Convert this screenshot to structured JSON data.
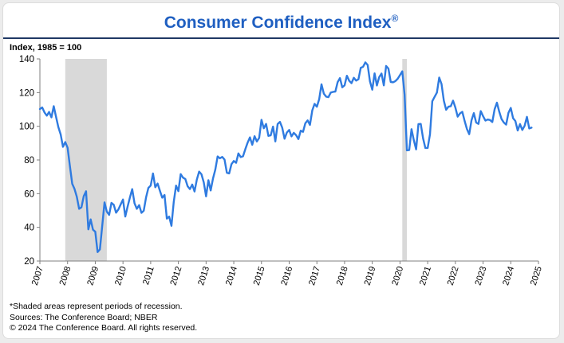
{
  "header": {
    "title": "Consumer Confidence Index",
    "registered_mark": "®"
  },
  "axis_note": "Index, 1985 = 100",
  "footer": {
    "lines": [
      "*Shaded areas represent periods of recession.",
      "Sources: The Conference Board;  NBER",
      "© 2024 The Conference Board. All rights reserved."
    ]
  },
  "colors": {
    "title_blue": "#1F5FC1",
    "rule_navy": "#1F3864"
  },
  "chart_data": {
    "type": "line",
    "title": "Consumer Confidence Index®",
    "ylabel": "Index, 1985 = 100",
    "xlabel": "",
    "x_start_year": 2007,
    "x_range": [
      2007,
      2025
    ],
    "ylim": [
      20,
      140
    ],
    "yticks": [
      20,
      40,
      60,
      80,
      100,
      120,
      140
    ],
    "x_tick_years": [
      2007,
      2008,
      2009,
      2010,
      2011,
      2012,
      2013,
      2014,
      2015,
      2016,
      2017,
      2018,
      2019,
      2020,
      2021,
      2022,
      2023,
      2024,
      2025
    ],
    "grid": false,
    "legend": "none",
    "line_color": "#2F7BE0",
    "axis_color": "#7f7f7f",
    "recession_color": "#d9d9d9",
    "recessions": [
      {
        "start": "2007-12",
        "end": "2009-06"
      },
      {
        "start": "2020-02",
        "end": "2020-04"
      }
    ],
    "series": [
      {
        "name": "Consumer Confidence Index (monthly)",
        "values": [
          110.2,
          111.2,
          108.2,
          106.3,
          108.5,
          105.3,
          111.9,
          105.6,
          99.5,
          95.2,
          87.8,
          90.6,
          87.3,
          76.4,
          65.9,
          62.8,
          58.1,
          51.0,
          51.9,
          58.5,
          61.4,
          38.8,
          44.7,
          38.6,
          37.4,
          25.3,
          26.9,
          40.8,
          54.8,
          49.3,
          47.4,
          54.5,
          53.4,
          48.7,
          50.6,
          53.6,
          56.5,
          46.4,
          52.3,
          57.7,
          62.7,
          54.3,
          51.0,
          53.2,
          48.6,
          49.9,
          57.8,
          63.4,
          64.8,
          72.0,
          63.8,
          66.0,
          61.7,
          57.6,
          59.2,
          45.2,
          46.4,
          40.9,
          55.2,
          64.8,
          61.5,
          71.6,
          69.5,
          68.7,
          64.4,
          62.7,
          65.4,
          61.3,
          68.4,
          73.1,
          71.5,
          66.7,
          58.4,
          68.0,
          61.9,
          69.0,
          74.3,
          82.1,
          81.0,
          81.8,
          80.2,
          72.4,
          72.0,
          77.5,
          79.4,
          78.3,
          83.9,
          81.7,
          82.2,
          86.4,
          90.3,
          93.4,
          89.0,
          94.1,
          91.0,
          93.1,
          103.8,
          98.8,
          101.4,
          94.3,
          94.6,
          99.8,
          91.0,
          101.3,
          102.6,
          99.1,
          92.6,
          96.3,
          97.8,
          94.0,
          96.1,
          94.7,
          92.4,
          97.4,
          96.7,
          101.8,
          103.5,
          100.8,
          109.4,
          113.3,
          111.6,
          116.1,
          124.9,
          119.4,
          117.6,
          117.3,
          120.0,
          120.4,
          120.6,
          126.2,
          128.6,
          123.1,
          124.3,
          130.0,
          127.0,
          125.6,
          128.8,
          127.1,
          127.9,
          134.7,
          135.3,
          137.9,
          136.4,
          126.6,
          121.7,
          131.4,
          124.2,
          129.2,
          131.3,
          124.3,
          135.8,
          134.2,
          126.3,
          126.1,
          126.8,
          128.2,
          130.4,
          132.6,
          118.8,
          85.7,
          85.9,
          98.3,
          91.7,
          86.3,
          101.3,
          101.4,
          92.9,
          87.1,
          87.1,
          95.2,
          114.9,
          117.5,
          120.0,
          128.9,
          125.1,
          115.2,
          109.8,
          111.6,
          111.9,
          115.2,
          111.1,
          105.7,
          107.6,
          108.6,
          103.2,
          98.4,
          95.3,
          103.6,
          107.8,
          102.2,
          101.4,
          109.0,
          106.0,
          103.4,
          104.0,
          103.7,
          102.5,
          110.1,
          114.0,
          108.7,
          104.3,
          102.2,
          101.0,
          108.0,
          110.9,
          104.8,
          103.1,
          97.5,
          101.3,
          97.8,
          100.3,
          105.6,
          98.7,
          99.2
        ]
      }
    ]
  }
}
